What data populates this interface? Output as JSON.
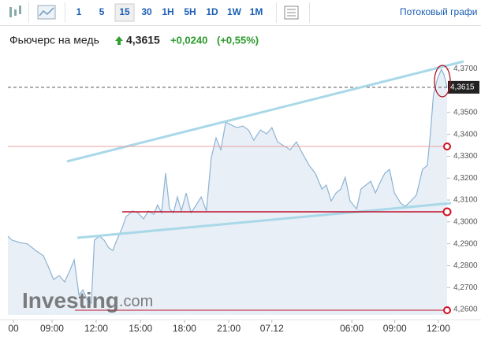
{
  "toolbar": {
    "intervals": [
      "1",
      "5",
      "15",
      "30",
      "1H",
      "5H",
      "1D",
      "1W",
      "1M"
    ],
    "selected_index": 2,
    "streaming_link": "Потоковый графи"
  },
  "header": {
    "title": "Фьючерс на медь",
    "price": "4,3615",
    "change": "+0,0240",
    "change_pct": "(+0,55%)"
  },
  "watermark": {
    "brand": "Investing",
    "suffix": ".com"
  },
  "chart_data": {
    "type": "area",
    "color": "#8db4d4",
    "fill": "#e8eff6",
    "x": [
      0,
      0.9,
      2.7,
      4.5,
      6.3,
      8.1,
      9.3,
      10.4,
      11.7,
      12.9,
      14.0,
      15.1,
      16.2,
      17.1,
      18.0,
      19.0,
      19.7,
      20.8,
      21.9,
      23.0,
      23.9,
      24.8,
      26.0,
      26.9,
      28.4,
      29.6,
      30.9,
      32.0,
      33.2,
      34.1,
      35.0,
      35.9,
      36.8,
      37.7,
      38.6,
      39.5,
      40.6,
      41.7,
      42.7,
      44.0,
      45.2,
      46.3,
      47.4,
      48.5,
      49.6,
      50.6,
      52.1,
      53.5,
      54.8,
      56.0,
      57.5,
      58.9,
      60.1,
      61.4,
      62.8,
      64.3,
      65.7,
      67.1,
      68.6,
      70.0,
      71.5,
      72.5,
      73.6,
      74.7,
      75.8,
      76.8,
      77.9,
      79.4,
      80.4,
      81.5,
      82.6,
      83.7,
      84.7,
      85.8,
      86.9,
      88.0,
      89.4,
      90.5,
      91.6,
      93.0,
      94.4,
      95.5,
      96.2,
      96.9,
      97.8,
      98.7,
      99.3,
      100
    ],
    "values": [
      4.2935,
      4.2917,
      4.2906,
      4.2899,
      4.287,
      4.2845,
      4.2791,
      4.2737,
      4.2755,
      4.2726,
      4.2773,
      4.2827,
      4.2665,
      4.269,
      4.2647,
      4.2629,
      4.2917,
      4.2935,
      4.2917,
      4.2881,
      4.287,
      4.2917,
      4.2971,
      4.3024,
      4.305,
      4.3042,
      4.3014,
      4.305,
      4.3035,
      4.3078,
      4.3042,
      4.3222,
      4.306,
      4.3042,
      4.3114,
      4.305,
      4.3132,
      4.3042,
      4.3071,
      4.3114,
      4.305,
      4.3294,
      4.3384,
      4.333,
      4.3456,
      4.3445,
      4.3431,
      4.3438,
      4.342,
      4.3373,
      4.342,
      4.3402,
      4.3431,
      4.3366,
      4.3348,
      4.333,
      4.3366,
      4.3312,
      4.3258,
      4.3222,
      4.315,
      4.3168,
      4.3096,
      4.3132,
      4.315,
      4.3204,
      4.3096,
      4.306,
      4.315,
      4.3168,
      4.3186,
      4.3132,
      4.3179,
      4.3222,
      4.324,
      4.3132,
      4.3086,
      4.3071,
      4.3093,
      4.3122,
      4.324,
      4.3258,
      4.3402,
      4.3582,
      4.3654,
      4.3697,
      4.3672,
      4.3615
    ],
    "xlim": [
      0,
      100
    ],
    "xticks": [
      {
        "value": 1.26,
        "label": "00"
      },
      {
        "value": 10.05,
        "label": "09:00"
      },
      {
        "value": 20.1,
        "label": "12:00"
      },
      {
        "value": 30.2,
        "label": "15:00"
      },
      {
        "value": 40.2,
        "label": "18:00"
      },
      {
        "value": 50.3,
        "label": "21:00"
      },
      {
        "value": 60.1,
        "label": "07.12"
      },
      {
        "value": 78.3,
        "label": "06:00"
      },
      {
        "value": 88.1,
        "label": "09:00"
      },
      {
        "value": 98.0,
        "label": "12:00"
      }
    ],
    "ylim": [
      4.2575,
      4.3744
    ],
    "yticks": [
      {
        "value": 4.26,
        "label": "4,2600"
      },
      {
        "value": 4.27,
        "label": "4,2700"
      },
      {
        "value": 4.28,
        "label": "4,2800"
      },
      {
        "value": 4.29,
        "label": "4,2900"
      },
      {
        "value": 4.3,
        "label": "4,3000"
      },
      {
        "value": 4.31,
        "label": "4,3100"
      },
      {
        "value": 4.32,
        "label": "4,3200"
      },
      {
        "value": 4.33,
        "label": "4,3300"
      },
      {
        "value": 4.34,
        "label": "4,3400"
      },
      {
        "value": 4.35,
        "label": "4,3500"
      },
      {
        "value": 4.37,
        "label": "4,3700"
      }
    ],
    "grid": false
  }
}
